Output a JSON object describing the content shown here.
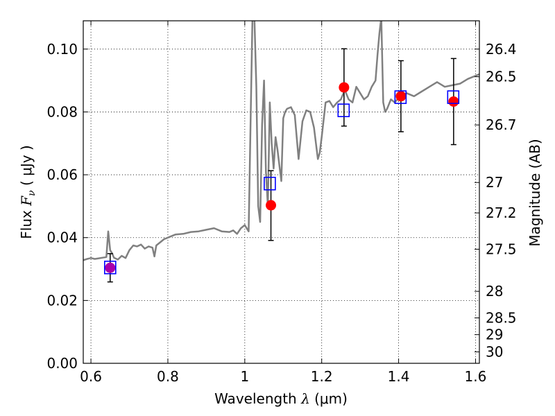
{
  "chart_data": {
    "type": "scatter",
    "xlabel_parts": {
      "prefix": "Wavelength  ",
      "symbol": "λ",
      "unit": " (μm)"
    },
    "ylabel_parts": {
      "prefix": "Flux  ",
      "symbol": "F",
      "sub": "ν",
      "unit": "  ( μJy )"
    },
    "y2label": "Magnitude (AB)",
    "xlim": [
      0.58,
      1.61
    ],
    "ylim": [
      0.0,
      0.109
    ],
    "xticks": [
      0.6,
      0.8,
      1.0,
      1.2,
      1.4,
      1.6
    ],
    "xtick_labels": [
      "0.6",
      "0.8",
      "1",
      "1.2",
      "1.4",
      "1.6"
    ],
    "yticks": [
      0.0,
      0.02,
      0.04,
      0.06,
      0.08,
      0.1
    ],
    "ytick_labels": [
      "0.00",
      "0.02",
      "0.04",
      "0.06",
      "0.08",
      "0.10"
    ],
    "y2ticks": [
      {
        "label": "26.4",
        "mag": 26.4
      },
      {
        "label": "26.5",
        "mag": 26.5
      },
      {
        "label": "26.7",
        "mag": 26.7
      },
      {
        "label": "27",
        "mag": 27.0
      },
      {
        "label": "27.2",
        "mag": 27.2
      },
      {
        "label": "27.5",
        "mag": 27.5
      },
      {
        "label": "28",
        "mag": 28.0
      },
      {
        "label": "28.5",
        "mag": 28.5
      },
      {
        "label": "29",
        "mag": 29.0
      },
      {
        "label": "30",
        "mag": 30.0
      }
    ],
    "grid": true,
    "grid_style": "dotted",
    "spectrum": {
      "color": "#808080",
      "x": [
        0.58,
        0.59,
        0.6,
        0.61,
        0.62,
        0.63,
        0.64,
        0.645,
        0.65,
        0.655,
        0.66,
        0.67,
        0.68,
        0.69,
        0.7,
        0.71,
        0.72,
        0.73,
        0.74,
        0.75,
        0.76,
        0.765,
        0.77,
        0.78,
        0.79,
        0.8,
        0.82,
        0.84,
        0.86,
        0.88,
        0.9,
        0.92,
        0.94,
        0.96,
        0.97,
        0.98,
        0.99,
        1.0,
        1.01,
        1.02,
        1.025,
        1.03,
        1.035,
        1.04,
        1.045,
        1.05,
        1.055,
        1.06,
        1.065,
        1.07,
        1.075,
        1.08,
        1.085,
        1.09,
        1.095,
        1.1,
        1.105,
        1.11,
        1.12,
        1.13,
        1.14,
        1.15,
        1.16,
        1.17,
        1.18,
        1.19,
        1.195,
        1.2,
        1.21,
        1.22,
        1.23,
        1.24,
        1.25,
        1.26,
        1.27,
        1.28,
        1.29,
        1.3,
        1.31,
        1.32,
        1.33,
        1.34,
        1.345,
        1.35,
        1.355,
        1.36,
        1.365,
        1.37,
        1.38,
        1.39,
        1.4,
        1.42,
        1.44,
        1.46,
        1.48,
        1.5,
        1.52,
        1.54,
        1.56,
        1.58,
        1.6,
        1.61
      ],
      "y": [
        0.0328,
        0.0332,
        0.0335,
        0.0332,
        0.0334,
        0.0336,
        0.0338,
        0.042,
        0.036,
        0.035,
        0.0336,
        0.033,
        0.0342,
        0.0335,
        0.036,
        0.0375,
        0.0372,
        0.0378,
        0.0365,
        0.0372,
        0.0368,
        0.034,
        0.0375,
        0.0385,
        0.0395,
        0.04,
        0.041,
        0.0412,
        0.0418,
        0.042,
        0.0425,
        0.043,
        0.042,
        0.0418,
        0.0423,
        0.0412,
        0.043,
        0.044,
        0.042,
        0.11,
        0.11,
        0.088,
        0.05,
        0.045,
        0.076,
        0.09,
        0.061,
        0.05,
        0.083,
        0.07,
        0.062,
        0.072,
        0.068,
        0.063,
        0.058,
        0.078,
        0.08,
        0.081,
        0.0815,
        0.079,
        0.065,
        0.077,
        0.0805,
        0.08,
        0.075,
        0.065,
        0.067,
        0.072,
        0.083,
        0.0835,
        0.0815,
        0.083,
        0.084,
        0.087,
        0.084,
        0.083,
        0.088,
        0.086,
        0.084,
        0.085,
        0.088,
        0.09,
        0.098,
        0.105,
        0.11,
        0.083,
        0.08,
        0.081,
        0.084,
        0.083,
        0.0845,
        0.086,
        0.085,
        0.0865,
        0.088,
        0.0895,
        0.088,
        0.0885,
        0.089,
        0.0905,
        0.0915,
        0.092
      ]
    },
    "model_photometry": {
      "marker": "open-square",
      "color": "#0000ff",
      "x": [
        0.65,
        1.065,
        1.257,
        1.405,
        1.542
      ],
      "y": [
        0.0305,
        0.0572,
        0.0805,
        0.0847,
        0.0847
      ]
    },
    "observed_photometry": {
      "marker": "filled-circle",
      "color": "#ff0000",
      "x": [
        0.65,
        1.068,
        1.258,
        1.406,
        1.543
      ],
      "y": [
        0.0304,
        0.0503,
        0.0878,
        0.085,
        0.0833
      ],
      "yerr_low": [
        0.0045,
        0.0112,
        0.0123,
        0.0113,
        0.0137
      ],
      "yerr_high": [
        0.0045,
        0.011,
        0.0123,
        0.0113,
        0.0137
      ],
      "first_point_color": "#aa00aa"
    }
  }
}
